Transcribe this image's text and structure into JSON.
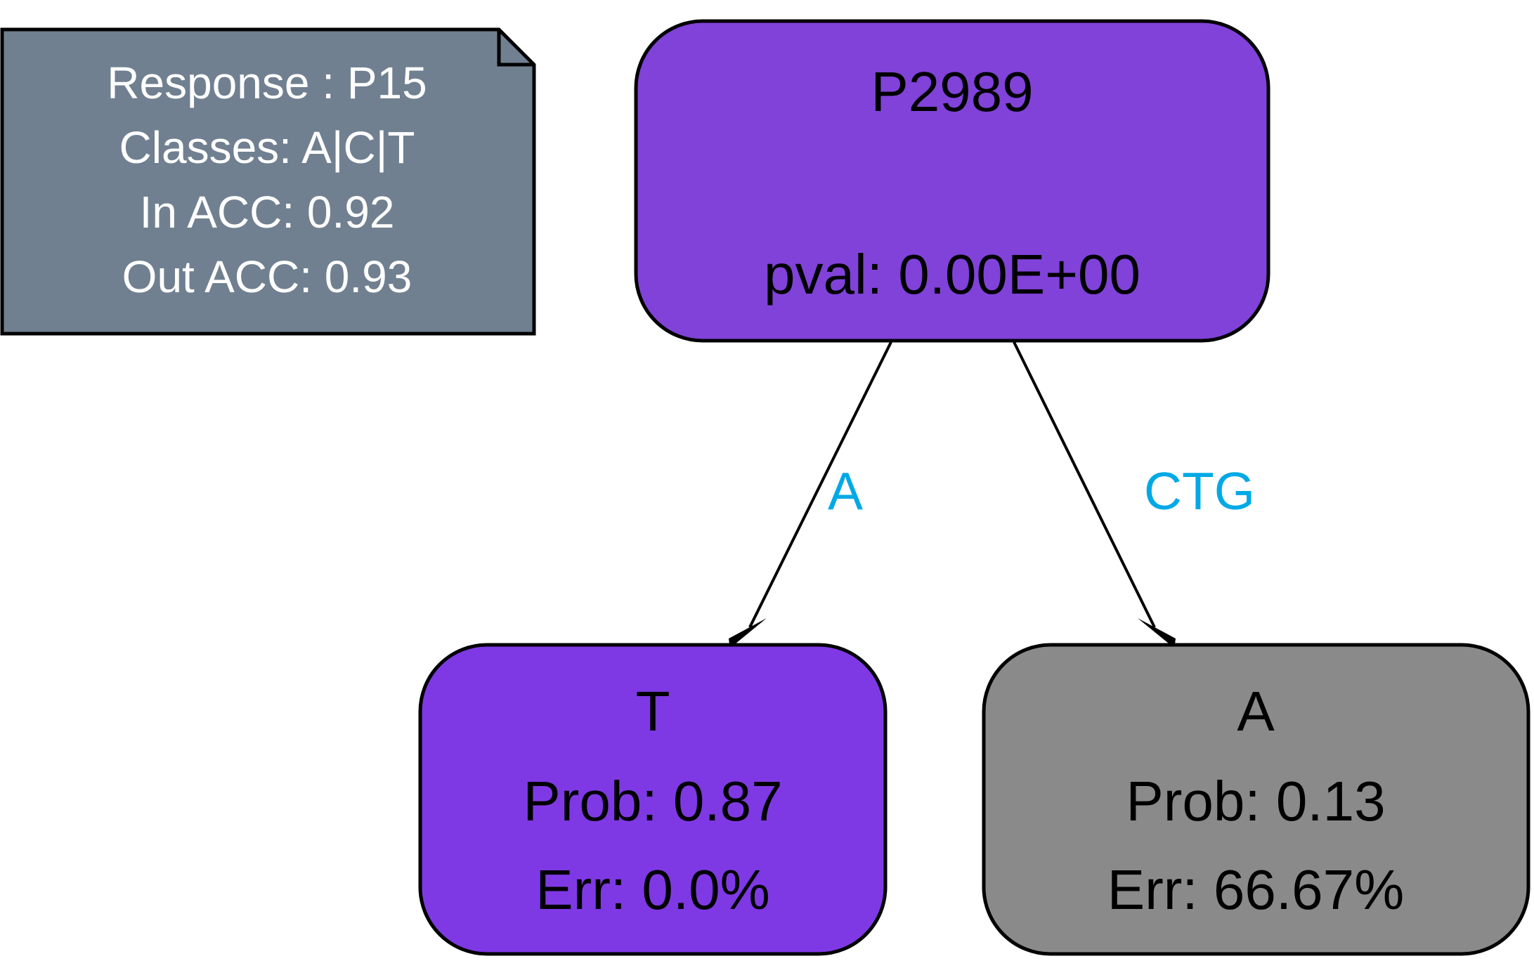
{
  "legend": {
    "lines": [
      "Response : P15",
      "Classes: A|C|T",
      "In ACC: 0.92",
      "Out ACC: 0.93"
    ],
    "fill": "#708090",
    "text_color": "#ffffff"
  },
  "nodes": {
    "root": {
      "title": "P2989",
      "pval": "pval: 0.00E+00",
      "fill": "#8042d9"
    },
    "leaf_t": {
      "class": "T",
      "prob": "Prob: 0.87",
      "err": "Err: 0.0%",
      "fill": "#7f39e4"
    },
    "leaf_a": {
      "class": "A",
      "prob": "Prob: 0.13",
      "err": "Err: 66.67%",
      "fill": "#8a8a8a"
    }
  },
  "edges": {
    "left": {
      "label": "A"
    },
    "right": {
      "label": "CTG"
    },
    "label_color": "#00a9e6"
  }
}
